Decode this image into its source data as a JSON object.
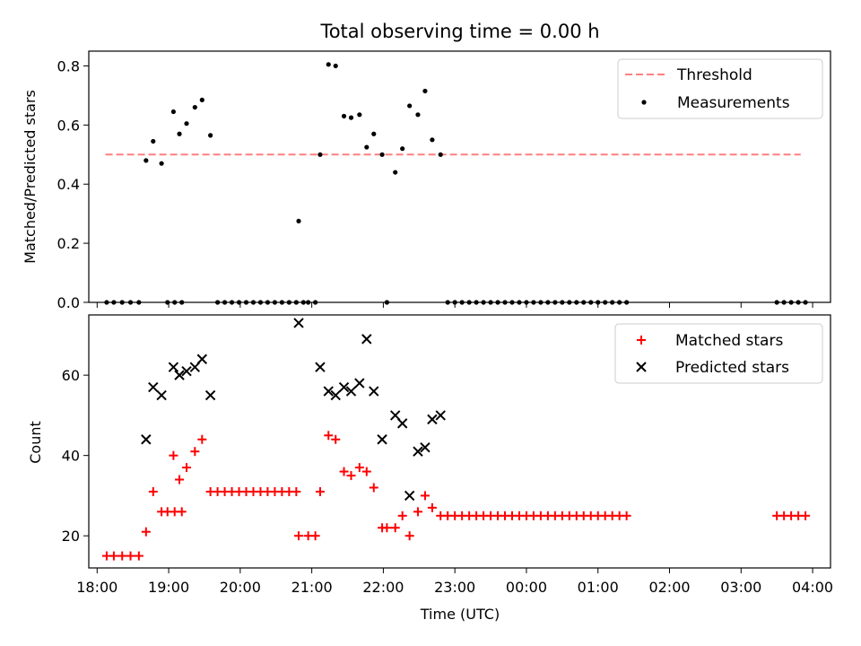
{
  "figure": {
    "title": "Total observing time = 0.00 h"
  },
  "chart_data": [
    {
      "type": "scatter",
      "ylabel": "Matched/Predicted stars",
      "xlim": [
        "17:53",
        "04:15"
      ],
      "ylim": [
        0,
        0.85
      ],
      "yticks": [
        "0.0",
        "0.2",
        "0.4",
        "0.6",
        "0.8"
      ],
      "grid": false,
      "legend": "top-right",
      "threshold": {
        "label": "Threshold",
        "value": 0.5,
        "x_range": [
          "18:07",
          "03:50"
        ],
        "color": "#ff7f7f",
        "style": "dashed"
      },
      "series": [
        {
          "name": "Measurements",
          "marker": "dot",
          "color": "#000000",
          "points": [
            [
              "18:08",
              0
            ],
            [
              "18:14",
              0
            ],
            [
              "18:21",
              0
            ],
            [
              "18:28",
              0
            ],
            [
              "18:35",
              0
            ],
            [
              "18:41",
              0.48
            ],
            [
              "18:47",
              0.545
            ],
            [
              "18:54",
              0.47
            ],
            [
              "18:59",
              0
            ],
            [
              "19:05",
              0
            ],
            [
              "19:11",
              0
            ],
            [
              "19:04",
              0.645
            ],
            [
              "19:09",
              0.57
            ],
            [
              "19:15",
              0.605
            ],
            [
              "19:22",
              0.66
            ],
            [
              "19:28",
              0.685
            ],
            [
              "19:35",
              0.565
            ],
            [
              "19:41",
              0
            ],
            [
              "19:47",
              0
            ],
            [
              "19:53",
              0
            ],
            [
              "19:59",
              0
            ],
            [
              "20:05",
              0
            ],
            [
              "20:11",
              0
            ],
            [
              "20:17",
              0
            ],
            [
              "20:23",
              0
            ],
            [
              "20:29",
              0
            ],
            [
              "20:35",
              0
            ],
            [
              "20:41",
              0
            ],
            [
              "20:47",
              0
            ],
            [
              "20:53",
              0
            ],
            [
              "20:49",
              0.275
            ],
            [
              "20:57",
              0
            ],
            [
              "21:03",
              0
            ],
            [
              "21:07",
              0.5
            ],
            [
              "21:14",
              0.805
            ],
            [
              "21:20",
              0.8
            ],
            [
              "21:27",
              0.63
            ],
            [
              "21:33",
              0.625
            ],
            [
              "21:40",
              0.635
            ],
            [
              "21:46",
              0.525
            ],
            [
              "21:52",
              0.57
            ],
            [
              "21:59",
              0.5
            ],
            [
              "22:03",
              0
            ],
            [
              "22:10",
              0.44
            ],
            [
              "22:16",
              0.52
            ],
            [
              "22:22",
              0.665
            ],
            [
              "22:29",
              0.635
            ],
            [
              "22:35",
              0.715
            ],
            [
              "22:41",
              0.55
            ],
            [
              "22:48",
              0.5
            ],
            [
              "22:54",
              0
            ],
            [
              "23:00",
              0
            ],
            [
              "23:06",
              0
            ],
            [
              "23:12",
              0
            ],
            [
              "23:18",
              0
            ],
            [
              "23:24",
              0
            ],
            [
              "23:30",
              0
            ],
            [
              "23:36",
              0
            ],
            [
              "23:42",
              0
            ],
            [
              "23:48",
              0
            ],
            [
              "23:54",
              0
            ],
            [
              "00:00",
              0
            ],
            [
              "00:06",
              0
            ],
            [
              "00:12",
              0
            ],
            [
              "00:18",
              0
            ],
            [
              "00:24",
              0
            ],
            [
              "00:30",
              0
            ],
            [
              "00:36",
              0
            ],
            [
              "00:42",
              0
            ],
            [
              "00:48",
              0
            ],
            [
              "00:54",
              0
            ],
            [
              "01:00",
              0
            ],
            [
              "01:06",
              0
            ],
            [
              "01:12",
              0
            ],
            [
              "01:18",
              0
            ],
            [
              "01:24",
              0
            ],
            [
              "03:30",
              0
            ],
            [
              "03:36",
              0
            ],
            [
              "03:42",
              0
            ],
            [
              "03:48",
              0
            ],
            [
              "03:54",
              0
            ]
          ]
        }
      ]
    },
    {
      "type": "scatter",
      "xlabel": "Time (UTC)",
      "ylabel": "Count",
      "xlim": [
        "17:53",
        "04:15"
      ],
      "ylim": [
        12,
        75
      ],
      "xticks": [
        "18:00",
        "19:00",
        "20:00",
        "21:00",
        "22:00",
        "23:00",
        "00:00",
        "01:00",
        "02:00",
        "03:00",
        "04:00"
      ],
      "yticks": [
        "20",
        "40",
        "60"
      ],
      "grid": false,
      "legend": "top-right",
      "series": [
        {
          "name": "Matched stars",
          "marker": "plus",
          "color": "#ff0000",
          "points": [
            [
              "18:08",
              15
            ],
            [
              "18:14",
              15
            ],
            [
              "18:21",
              15
            ],
            [
              "18:28",
              15
            ],
            [
              "18:35",
              15
            ],
            [
              "18:41",
              21
            ],
            [
              "18:47",
              31
            ],
            [
              "18:54",
              26
            ],
            [
              "18:59",
              26
            ],
            [
              "19:05",
              26
            ],
            [
              "19:11",
              26
            ],
            [
              "19:04",
              40
            ],
            [
              "19:09",
              34
            ],
            [
              "19:15",
              37
            ],
            [
              "19:22",
              41
            ],
            [
              "19:28",
              44
            ],
            [
              "19:35",
              31
            ],
            [
              "19:41",
              31
            ],
            [
              "19:47",
              31
            ],
            [
              "19:53",
              31
            ],
            [
              "19:59",
              31
            ],
            [
              "20:05",
              31
            ],
            [
              "20:11",
              31
            ],
            [
              "20:17",
              31
            ],
            [
              "20:23",
              31
            ],
            [
              "20:29",
              31
            ],
            [
              "20:35",
              31
            ],
            [
              "20:41",
              31
            ],
            [
              "20:47",
              31
            ],
            [
              "20:49",
              20
            ],
            [
              "20:57",
              20
            ],
            [
              "21:03",
              20
            ],
            [
              "21:07",
              31
            ],
            [
              "21:14",
              45
            ],
            [
              "21:20",
              44
            ],
            [
              "21:27",
              36
            ],
            [
              "21:33",
              35
            ],
            [
              "21:40",
              37
            ],
            [
              "21:46",
              36
            ],
            [
              "21:52",
              32
            ],
            [
              "21:59",
              22
            ],
            [
              "22:03",
              22
            ],
            [
              "22:10",
              22
            ],
            [
              "22:16",
              25
            ],
            [
              "22:22",
              20
            ],
            [
              "22:29",
              26
            ],
            [
              "22:35",
              30
            ],
            [
              "22:41",
              27
            ],
            [
              "22:48",
              25
            ],
            [
              "22:54",
              25
            ],
            [
              "23:00",
              25
            ],
            [
              "23:06",
              25
            ],
            [
              "23:12",
              25
            ],
            [
              "23:18",
              25
            ],
            [
              "23:24",
              25
            ],
            [
              "23:30",
              25
            ],
            [
              "23:36",
              25
            ],
            [
              "23:42",
              25
            ],
            [
              "23:48",
              25
            ],
            [
              "23:54",
              25
            ],
            [
              "00:00",
              25
            ],
            [
              "00:06",
              25
            ],
            [
              "00:12",
              25
            ],
            [
              "00:18",
              25
            ],
            [
              "00:24",
              25
            ],
            [
              "00:30",
              25
            ],
            [
              "00:36",
              25
            ],
            [
              "00:42",
              25
            ],
            [
              "00:48",
              25
            ],
            [
              "00:54",
              25
            ],
            [
              "01:00",
              25
            ],
            [
              "01:06",
              25
            ],
            [
              "01:12",
              25
            ],
            [
              "01:18",
              25
            ],
            [
              "01:24",
              25
            ],
            [
              "03:30",
              25
            ],
            [
              "03:36",
              25
            ],
            [
              "03:42",
              25
            ],
            [
              "03:48",
              25
            ],
            [
              "03:54",
              25
            ]
          ]
        },
        {
          "name": "Predicted stars",
          "marker": "x",
          "color": "#000000",
          "points": [
            [
              "18:41",
              44
            ],
            [
              "18:47",
              57
            ],
            [
              "18:54",
              55
            ],
            [
              "19:04",
              62
            ],
            [
              "19:09",
              60
            ],
            [
              "19:15",
              61
            ],
            [
              "19:22",
              62
            ],
            [
              "19:28",
              64
            ],
            [
              "19:35",
              55
            ],
            [
              "20:49",
              73
            ],
            [
              "21:07",
              62
            ],
            [
              "21:14",
              56
            ],
            [
              "21:20",
              55
            ],
            [
              "21:27",
              57
            ],
            [
              "21:33",
              56
            ],
            [
              "21:40",
              58
            ],
            [
              "21:46",
              69
            ],
            [
              "21:52",
              56
            ],
            [
              "21:59",
              44
            ],
            [
              "22:10",
              50
            ],
            [
              "22:16",
              48
            ],
            [
              "22:22",
              30
            ],
            [
              "22:29",
              41
            ],
            [
              "22:35",
              42
            ],
            [
              "22:41",
              49
            ],
            [
              "22:48",
              50
            ]
          ]
        }
      ]
    }
  ]
}
